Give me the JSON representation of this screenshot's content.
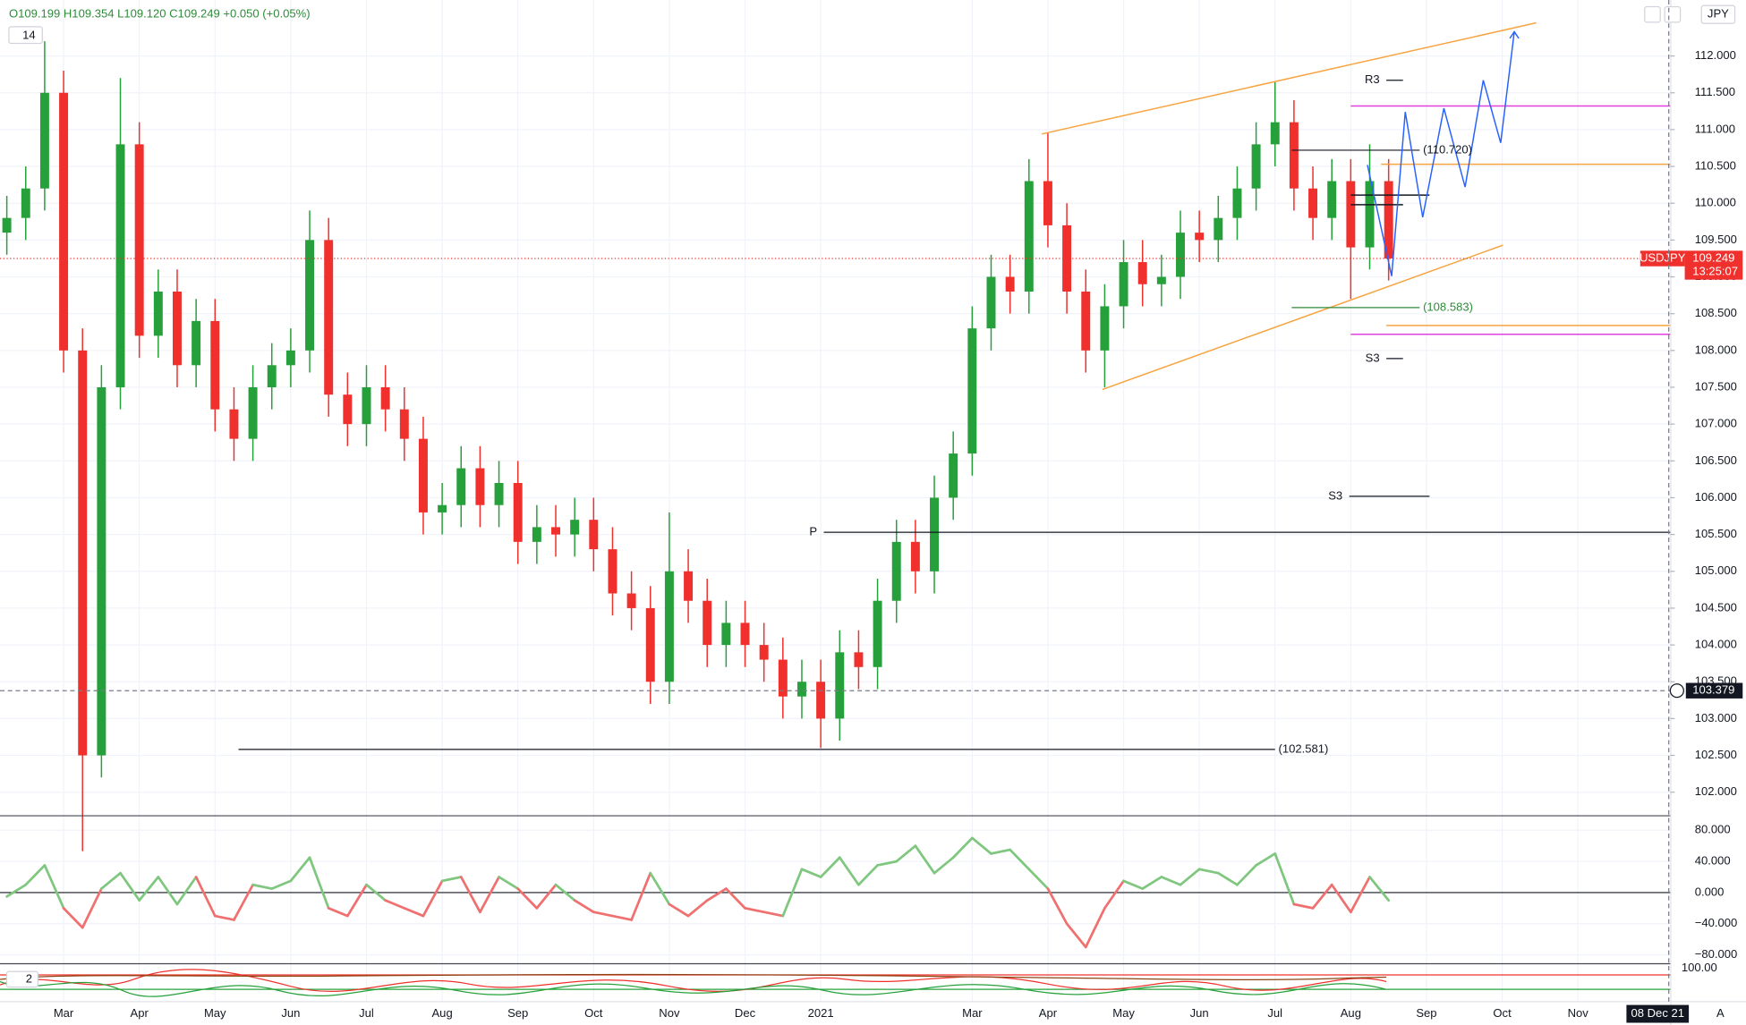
{
  "chart_data": {
    "type": "candlestick",
    "ohlc_legend": "O109.199 H109.354 L109.120 C109.249 +0.050 (+0.05%)",
    "indicator_length": "14",
    "lower_indicator_length": "2",
    "symbol": "USDJPY",
    "countdown": "13:25:07",
    "currency": "JPY",
    "scale_mode": "A",
    "current_price": 109.249,
    "crosshair_price": 103.379,
    "crosshair_x": 22.2,
    "crosshair_date": "08 Dec 21",
    "up_color": "#26a03a",
    "down_color": "#f0302c",
    "xlim": [
      0.16,
      22.22
    ],
    "xticks": [
      {
        "value": 1,
        "label": "Mar"
      },
      {
        "value": 2,
        "label": "Apr"
      },
      {
        "value": 3,
        "label": "May"
      },
      {
        "value": 4,
        "label": "Jun"
      },
      {
        "value": 5,
        "label": "Jul"
      },
      {
        "value": 6,
        "label": "Aug"
      },
      {
        "value": 7,
        "label": "Sep"
      },
      {
        "value": 8,
        "label": "Oct"
      },
      {
        "value": 9,
        "label": "Nov"
      },
      {
        "value": 10,
        "label": "Dec"
      },
      {
        "value": 11,
        "label": "2021"
      },
      {
        "value": 13,
        "label": "Mar"
      },
      {
        "value": 14,
        "label": "Apr"
      },
      {
        "value": 15,
        "label": "May"
      },
      {
        "value": 16,
        "label": "Jun"
      },
      {
        "value": 17,
        "label": "Jul"
      },
      {
        "value": 18,
        "label": "Aug"
      },
      {
        "value": 19,
        "label": "Sep"
      },
      {
        "value": 20,
        "label": "Oct"
      },
      {
        "value": 21,
        "label": "Nov"
      }
    ],
    "ylim": [
      101.68,
      112.76
    ],
    "yticks": [
      {
        "value": 112,
        "label": "112.000"
      },
      {
        "value": 111.5,
        "label": "111.500"
      },
      {
        "value": 111,
        "label": "111.000"
      },
      {
        "value": 110.5,
        "label": "110.500"
      },
      {
        "value": 110,
        "label": "110.000"
      },
      {
        "value": 109.5,
        "label": "109.500"
      },
      {
        "value": 109,
        "label": "109.000"
      },
      {
        "value": 108.5,
        "label": "108.500"
      },
      {
        "value": 108,
        "label": "108.000"
      },
      {
        "value": 107.5,
        "label": "107.500"
      },
      {
        "value": 107,
        "label": "107.000"
      },
      {
        "value": 106.5,
        "label": "106.500"
      },
      {
        "value": 106,
        "label": "106.000"
      },
      {
        "value": 105.5,
        "label": "105.500"
      },
      {
        "value": 105,
        "label": "105.000"
      },
      {
        "value": 104.5,
        "label": "104.500"
      },
      {
        "value": 104,
        "label": "104.000"
      },
      {
        "value": 103.5,
        "label": "103.500"
      },
      {
        "value": 103,
        "label": "103.000"
      },
      {
        "value": 102.5,
        "label": "102.500"
      },
      {
        "value": 102,
        "label": "102.000"
      }
    ],
    "x": [
      0.25,
      0.5,
      0.75,
      1,
      1.25,
      1.5,
      1.75,
      2,
      2.25,
      2.5,
      2.75,
      3,
      3.25,
      3.5,
      3.75,
      4,
      4.25,
      4.5,
      4.75,
      5,
      5.25,
      5.5,
      5.75,
      6,
      6.25,
      6.5,
      6.75,
      7,
      7.25,
      7.5,
      7.75,
      8,
      8.25,
      8.5,
      8.75,
      9,
      9.25,
      9.5,
      9.75,
      10,
      10.25,
      10.5,
      10.75,
      11,
      11.25,
      11.5,
      11.75,
      12,
      12.25,
      12.5,
      12.75,
      13,
      13.25,
      13.5,
      13.75,
      14,
      14.25,
      14.5,
      14.75,
      15,
      15.25,
      15.5,
      15.75,
      16,
      16.25,
      16.5,
      16.75,
      17,
      17.25,
      17.5,
      17.75,
      18,
      18.25,
      18.5
    ],
    "open": [
      109.6,
      109.8,
      110.2,
      111.5,
      108.0,
      102.5,
      107.5,
      110.8,
      108.2,
      108.8,
      107.8,
      108.4,
      107.2,
      106.8,
      107.5,
      107.8,
      108.0,
      109.5,
      107.4,
      107.0,
      107.5,
      107.2,
      106.8,
      105.8,
      105.9,
      106.4,
      105.9,
      106.2,
      105.4,
      105.6,
      105.5,
      105.7,
      105.3,
      104.7,
      104.5,
      103.5,
      105.0,
      104.6,
      104.0,
      104.3,
      104.0,
      103.8,
      103.3,
      103.5,
      103.0,
      103.9,
      103.7,
      104.6,
      105.4,
      105.0,
      106.0,
      106.6,
      108.3,
      109.0,
      108.8,
      110.3,
      109.7,
      108.8,
      108.0,
      108.6,
      109.2,
      108.9,
      109.0,
      109.6,
      109.5,
      109.8,
      110.2,
      110.8,
      111.1,
      110.2,
      109.8,
      110.3,
      109.4,
      110.3
    ],
    "high": [
      110.1,
      110.5,
      112.2,
      111.8,
      108.3,
      107.8,
      111.7,
      111.1,
      109.1,
      109.1,
      108.7,
      108.7,
      107.5,
      107.8,
      108.1,
      108.3,
      109.9,
      109.8,
      107.7,
      107.8,
      107.8,
      107.5,
      107.1,
      106.2,
      106.7,
      106.7,
      106.5,
      106.5,
      105.9,
      105.9,
      106.0,
      106.0,
      105.6,
      105.0,
      104.8,
      105.8,
      105.3,
      104.9,
      104.6,
      104.6,
      104.3,
      104.1,
      103.8,
      103.8,
      104.2,
      104.2,
      104.9,
      105.7,
      105.7,
      106.3,
      106.9,
      108.6,
      109.3,
      109.3,
      110.6,
      110.95,
      110.0,
      109.1,
      108.9,
      109.5,
      109.5,
      109.3,
      109.9,
      109.9,
      110.1,
      110.5,
      111.1,
      111.65,
      111.4,
      110.5,
      110.6,
      110.6,
      110.8,
      110.6
    ],
    "low": [
      109.3,
      109.5,
      109.9,
      107.7,
      101.2,
      102.2,
      107.2,
      107.9,
      107.9,
      107.5,
      107.5,
      106.9,
      106.5,
      106.5,
      107.2,
      107.5,
      107.7,
      107.1,
      106.7,
      106.7,
      106.9,
      106.5,
      105.5,
      105.5,
      105.6,
      105.6,
      105.6,
      105.1,
      105.1,
      105.2,
      105.2,
      105.0,
      104.4,
      104.2,
      103.2,
      103.2,
      104.3,
      103.7,
      103.7,
      103.7,
      103.5,
      103.0,
      103.0,
      102.6,
      102.7,
      103.4,
      103.4,
      104.3,
      104.7,
      104.7,
      105.7,
      106.3,
      108.0,
      108.5,
      108.5,
      109.4,
      108.5,
      107.7,
      107.5,
      108.3,
      108.6,
      108.6,
      108.7,
      109.2,
      109.2,
      109.5,
      109.9,
      110.5,
      109.9,
      109.5,
      109.5,
      108.7,
      109.1,
      108.95
    ],
    "close": [
      109.8,
      110.2,
      111.5,
      108.0,
      102.5,
      107.5,
      110.8,
      108.2,
      108.8,
      107.8,
      108.4,
      107.2,
      106.8,
      107.5,
      107.8,
      108.0,
      109.5,
      107.4,
      107.0,
      107.5,
      107.2,
      106.8,
      105.8,
      105.9,
      106.4,
      105.9,
      106.2,
      105.4,
      105.6,
      105.5,
      105.7,
      105.3,
      104.7,
      104.5,
      103.5,
      105.0,
      104.6,
      104.0,
      104.3,
      104.0,
      103.8,
      103.3,
      103.5,
      103.0,
      103.9,
      103.7,
      104.6,
      105.4,
      105.0,
      106.0,
      106.6,
      108.3,
      109.0,
      108.8,
      110.3,
      109.7,
      108.8,
      108.0,
      108.6,
      109.2,
      108.9,
      109.0,
      109.6,
      109.5,
      109.8,
      110.2,
      110.8,
      111.1,
      110.2,
      109.8,
      110.3,
      109.4,
      110.3,
      109.25
    ],
    "lines": [
      {
        "x": [
          13.92,
          20.45
        ],
        "y": [
          110.94,
          112.45
        ],
        "color": "#f7a440"
      },
      {
        "x": [
          14.72,
          20.01
        ],
        "y": [
          107.47,
          109.43
        ],
        "color": "#f7a440"
      },
      {
        "x": [
          18.4,
          22.22
        ],
        "y": [
          110.53,
          110.53
        ],
        "color": "#f7a440"
      },
      {
        "x": [
          18.47,
          22.22
        ],
        "y": [
          108.34,
          108.34
        ],
        "color": "#f7a440"
      },
      {
        "x": [
          18.0,
          22.22
        ],
        "y": [
          111.32,
          111.32
        ],
        "color": "#e040e0"
      },
      {
        "x": [
          18.0,
          22.22
        ],
        "y": [
          108.22,
          108.22
        ],
        "color": "#e040e0"
      },
      {
        "x": [
          18.0,
          19.04
        ],
        "y": [
          110.11,
          110.11
        ],
        "color": "#131722"
      },
      {
        "x": [
          18.0,
          18.69
        ],
        "y": [
          109.98,
          109.98
        ],
        "color": "#131722"
      }
    ],
    "price_marks": [
      {
        "label": "(110.720)",
        "x": [
          17.22,
          18.91
        ],
        "y": 110.72,
        "color": "#131722"
      },
      {
        "label": "(108.583)",
        "x": [
          17.22,
          18.91
        ],
        "y": 108.583,
        "color": "#2e8b3a"
      },
      {
        "label": "(102.581)",
        "x": [
          3.31,
          17.0
        ],
        "y": 102.581,
        "color": "#131722"
      }
    ],
    "pivots": [
      {
        "label": "R3",
        "x": [
          18.47,
          18.69
        ],
        "y": 111.67
      },
      {
        "label": "S3",
        "x": [
          18.47,
          18.69
        ],
        "y": 107.89
      },
      {
        "label": "P",
        "x": [
          11.04,
          22.22
        ],
        "y": 105.53
      },
      {
        "label": "S3",
        "x": [
          17.98,
          19.04
        ],
        "y": 106.02
      }
    ],
    "projection": {
      "color": "#2962ff",
      "x": [
        18.22,
        18.54,
        18.72,
        18.95,
        19.23,
        19.51,
        19.75,
        19.98,
        20.16
      ],
      "y": [
        110.52,
        109.01,
        111.24,
        109.81,
        111.29,
        110.22,
        111.67,
        110.82,
        112.33
      ]
    },
    "oscillator": {
      "ylim": [
        -91.4,
        98.6
      ],
      "yticks": [
        {
          "value": 80,
          "label": "80.000"
        },
        {
          "value": 40,
          "label": "40.000"
        },
        {
          "value": 0,
          "label": "0.000"
        },
        {
          "value": -40,
          "label": "−40.000"
        },
        {
          "value": -80,
          "label": "−80.000"
        }
      ],
      "values": [
        -5,
        10,
        35,
        -20,
        -45,
        5,
        25,
        -10,
        20,
        -15,
        20,
        -30,
        -35,
        10,
        5,
        15,
        45,
        -20,
        -30,
        10,
        -10,
        -20,
        -30,
        15,
        20,
        -25,
        20,
        5,
        -20,
        10,
        -10,
        -25,
        -30,
        -35,
        25,
        -15,
        -30,
        -10,
        5,
        -20,
        -25,
        -30,
        30,
        20,
        45,
        10,
        35,
        40,
        60,
        25,
        45,
        70,
        50,
        55,
        30,
        5,
        -40,
        -70,
        -20,
        15,
        5,
        20,
        10,
        30,
        25,
        10,
        35,
        50,
        -15,
        -20,
        10,
        -25,
        20,
        -10
      ]
    },
    "lower_axis_label": "100.00"
  }
}
